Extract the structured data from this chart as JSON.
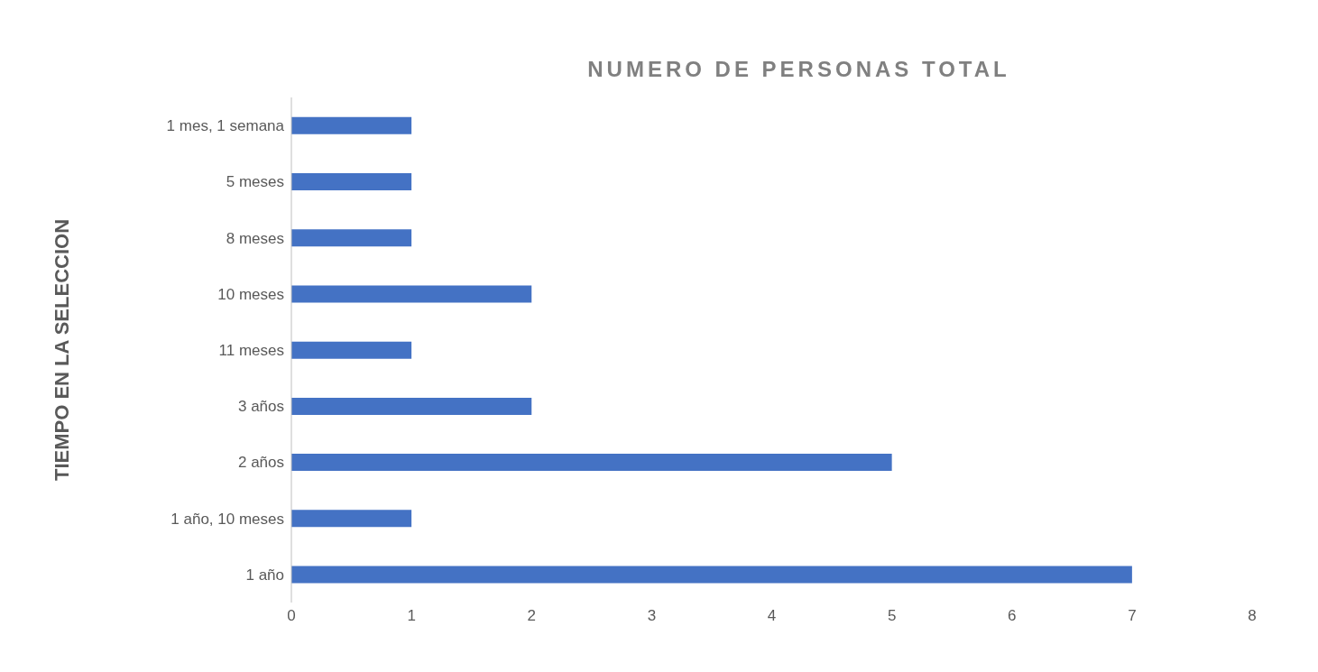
{
  "chart_data": {
    "type": "bar",
    "orientation": "horizontal",
    "title": "NUMERO DE PERSONAS TOTAL",
    "ylabel": "TIEMPO EN LA SELECCION",
    "categories": [
      "1 mes, 1 semana",
      "5 meses",
      "8 meses",
      "10 meses",
      "11 meses",
      "3 años",
      "2 años",
      "1 año, 10 meses",
      "1 año"
    ],
    "values": [
      1,
      1,
      1,
      2,
      1,
      2,
      5,
      1,
      7
    ],
    "color": "#4472c4",
    "xlim": [
      0,
      8
    ],
    "xticks": [
      0,
      1,
      2,
      3,
      4,
      5,
      6,
      7,
      8
    ]
  }
}
